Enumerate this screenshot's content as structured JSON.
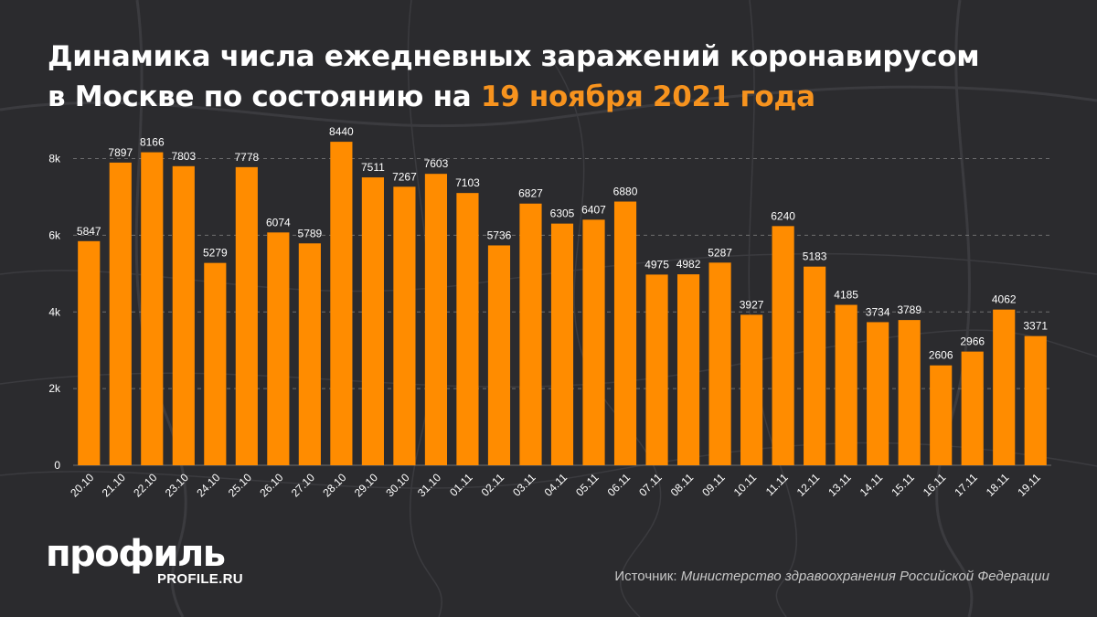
{
  "title": {
    "line1": "Динамика числа ежедневных заражений коронавирусом",
    "line2_prefix": "в Москве по состоянию на ",
    "line2_highlight": "19 ноября 2021 года"
  },
  "colors": {
    "background": "#2b2b2e",
    "bar": "#ff8c00",
    "highlight": "#f7931e",
    "text": "#ffffff",
    "grid": "#8a8a8a"
  },
  "chart_data": {
    "type": "bar",
    "categories": [
      "20.10",
      "21.10",
      "22.10",
      "23.10",
      "24.10",
      "25.10",
      "26.10",
      "27.10",
      "28.10",
      "29.10",
      "30.10",
      "31.10",
      "01.11",
      "02.11",
      "03.11",
      "04.11",
      "05.11",
      "06.11",
      "07.11",
      "08.11",
      "09.11",
      "10.11",
      "11.11",
      "12.11",
      "13.11",
      "14.11",
      "15.11",
      "16.11",
      "17.11",
      "18.11",
      "19.11"
    ],
    "values": [
      5847,
      7897,
      8166,
      7803,
      5279,
      7778,
      6074,
      5789,
      8440,
      7511,
      7267,
      7603,
      7103,
      5736,
      6827,
      6305,
      6407,
      6880,
      4975,
      4982,
      5287,
      3927,
      6240,
      5183,
      4185,
      3734,
      3789,
      2606,
      2966,
      4062,
      3371
    ],
    "y_ticks": [
      {
        "value": 0,
        "label": "0"
      },
      {
        "value": 2000,
        "label": "2k"
      },
      {
        "value": 4000,
        "label": "4k"
      },
      {
        "value": 6000,
        "label": "6k"
      },
      {
        "value": 8000,
        "label": "8k"
      }
    ],
    "ylim": [
      0,
      8800
    ],
    "grid": true,
    "data_labels": true,
    "xlabel": "",
    "ylabel": ""
  },
  "brand": {
    "logo": "профиль",
    "url": "PROFILE.RU"
  },
  "source": {
    "prefix": "Источник: ",
    "org": "Министерство здравоохранения Российской Федерации"
  }
}
